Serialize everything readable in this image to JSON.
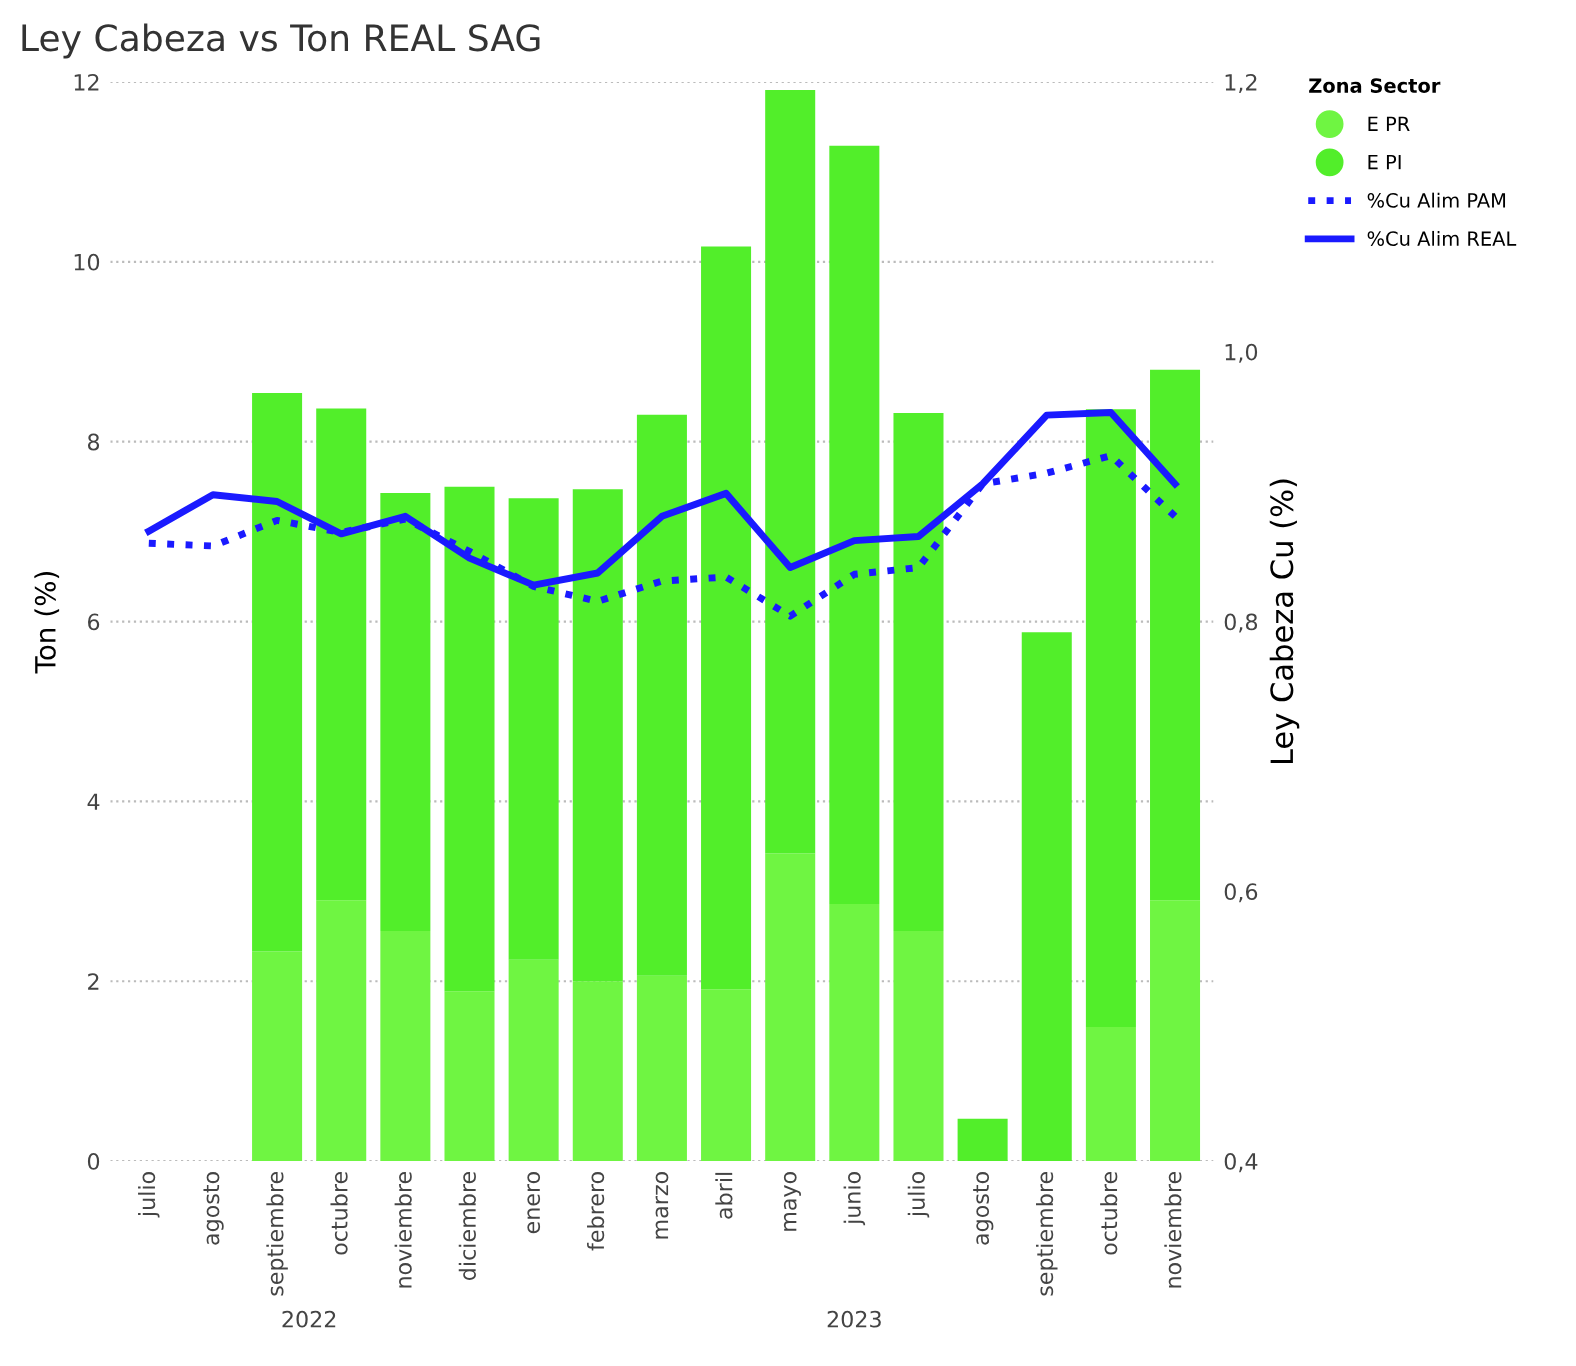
{
  "chart_data": {
    "type": "bar",
    "title": "Ley Cabeza vs Ton REAL SAG",
    "ylabel": "Ton (%)",
    "y2label": "Ley Cabeza Cu (%)",
    "legend_title": "Zona Sector",
    "categories": [
      "julio",
      "agosto",
      "septiembre",
      "octubre",
      "noviembre",
      "diciembre",
      "enero",
      "febrero",
      "marzo",
      "abril",
      "mayo",
      "junio",
      "julio",
      "agosto",
      "septiembre",
      "octubre",
      "noviembre"
    ],
    "stacked": true,
    "series": [
      {
        "name": "E PR",
        "color": "#6ff542",
        "values": [
          null,
          null,
          2.33,
          2.9,
          2.56,
          1.89,
          2.24,
          2.0,
          2.06,
          1.91,
          3.42,
          2.86,
          2.56,
          null,
          null,
          1.49,
          2.9
        ]
      },
      {
        "name": "E PI",
        "color": "#52ee2a",
        "values": [
          null,
          null,
          6.21,
          5.47,
          4.87,
          5.61,
          5.13,
          5.47,
          6.24,
          8.26,
          8.49,
          8.43,
          5.76,
          0.47,
          5.88,
          6.87,
          5.9
        ]
      },
      {
        "name": "%Cu Alim PAM",
        "type": "line",
        "axis": "y2",
        "line_style": "dotted",
        "color": "#1a1aff",
        "values": [
          0.858,
          0.856,
          0.875,
          0.866,
          0.876,
          0.852,
          0.826,
          0.815,
          0.83,
          0.833,
          0.804,
          0.835,
          0.84,
          0.902,
          0.91,
          0.923,
          0.878
        ]
      },
      {
        "name": "%Cu Alim REAL",
        "type": "line",
        "axis": "y2",
        "line_style": "solid",
        "color": "#1a1aff",
        "values": [
          0.867,
          0.894,
          0.889,
          0.865,
          0.878,
          0.847,
          0.827,
          0.836,
          0.878,
          0.895,
          0.84,
          0.86,
          0.863,
          0.902,
          0.953,
          0.955,
          0.902
        ]
      }
    ],
    "ylim": [
      0,
      12
    ],
    "yticks": [
      0,
      2,
      4,
      6,
      8,
      10,
      12
    ],
    "y2lim": [
      0.4,
      1.2
    ],
    "y2ticks": [
      {
        "value": 0.4,
        "label": "0,4"
      },
      {
        "value": 0.6,
        "label": "0,6"
      },
      {
        "value": 0.8,
        "label": "0,8"
      },
      {
        "value": 1.0,
        "label": "1,0"
      },
      {
        "value": 1.2,
        "label": "1,2"
      }
    ],
    "grid": "y",
    "legend": "top right",
    "marker": "none",
    "annotations": [
      "2022",
      "2023"
    ]
  }
}
